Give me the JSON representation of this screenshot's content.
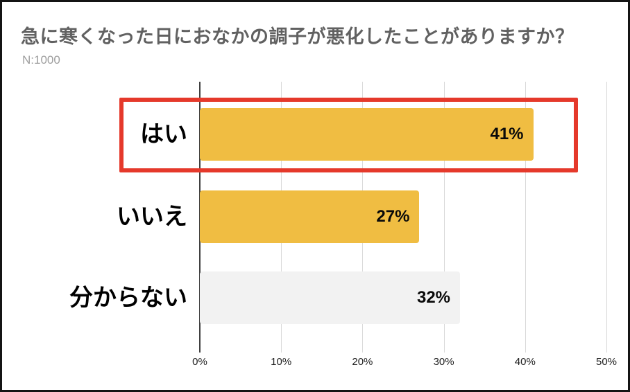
{
  "title": "急に寒くなった日におなかの調子が悪化したことがありますか？",
  "sample_size": "N:1000",
  "chart_data": {
    "type": "bar",
    "orientation": "horizontal",
    "title": "急に寒くなった日におなかの調子が悪化したことがありますか？",
    "subtitle": "N:1000",
    "categories": [
      "はい",
      "いいえ",
      "分からない"
    ],
    "values": [
      41,
      27,
      32
    ],
    "value_labels": [
      "41%",
      "27%",
      "32%"
    ],
    "x_ticks": [
      "0%",
      "10%",
      "20%",
      "30%",
      "40%",
      "50%"
    ],
    "xlim": [
      0,
      50
    ],
    "grid": true,
    "legend": false,
    "bar_colors": [
      "#F0BD42",
      "#F0BD42",
      "#F2F2F2"
    ],
    "highlighted_category": "はい",
    "highlight_color": "#E5392B",
    "axis_color": "#404040",
    "gridline_color": "#D9D9D9"
  }
}
